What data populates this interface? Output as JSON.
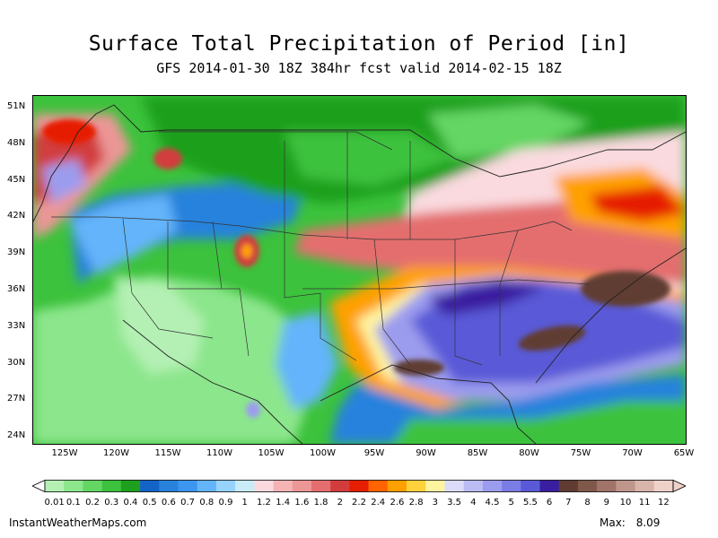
{
  "title": "Surface Total Precipitation of Period [in]",
  "subtitle": "GFS 2014-01-30 18Z 384hr fcst valid 2014-02-15 18Z",
  "lat_labels": [
    "51N",
    "48N",
    "45N",
    "42N",
    "39N",
    "36N",
    "33N",
    "30N",
    "27N",
    "24N"
  ],
  "lon_labels": [
    "125W",
    "120W",
    "115W",
    "110W",
    "105W",
    "100W",
    "95W",
    "90W",
    "85W",
    "80W",
    "75W",
    "70W",
    "65W"
  ],
  "legend": {
    "labels": [
      "0.01",
      "0.1",
      "0.2",
      "0.3",
      "0.4",
      "0.5",
      "0.6",
      "0.7",
      "0.8",
      "0.9",
      "1",
      "1.2",
      "1.4",
      "1.6",
      "1.8",
      "2",
      "2.2",
      "2.4",
      "2.6",
      "2.8",
      "3",
      "3.5",
      "4",
      "4.5",
      "5",
      "5.5",
      "6",
      "7",
      "8",
      "9",
      "10",
      "11",
      "12"
    ],
    "colors": [
      "#b4f0b4",
      "#8ce68c",
      "#64d664",
      "#3cc23c",
      "#1ea01e",
      "#1464c8",
      "#2882dc",
      "#3c96f0",
      "#64b4fa",
      "#96d2fa",
      "#c8ebf8",
      "#fadadf",
      "#f4b4b4",
      "#ec9696",
      "#e46e6e",
      "#d23c3c",
      "#e61e00",
      "#ff6400",
      "#ffa000",
      "#ffd23c",
      "#fff5a0",
      "#dcdcf8",
      "#bcbcf4",
      "#9c9cee",
      "#7c7ce6",
      "#5a5ad8",
      "#3a1ea0",
      "#603c32",
      "#80584a",
      "#a07468",
      "#be968c",
      "#d8b4aa",
      "#eed2ca"
    ]
  },
  "footer": {
    "site": "InstantWeatherMaps.com",
    "max_label": "Max:",
    "max_value": "8.09"
  }
}
